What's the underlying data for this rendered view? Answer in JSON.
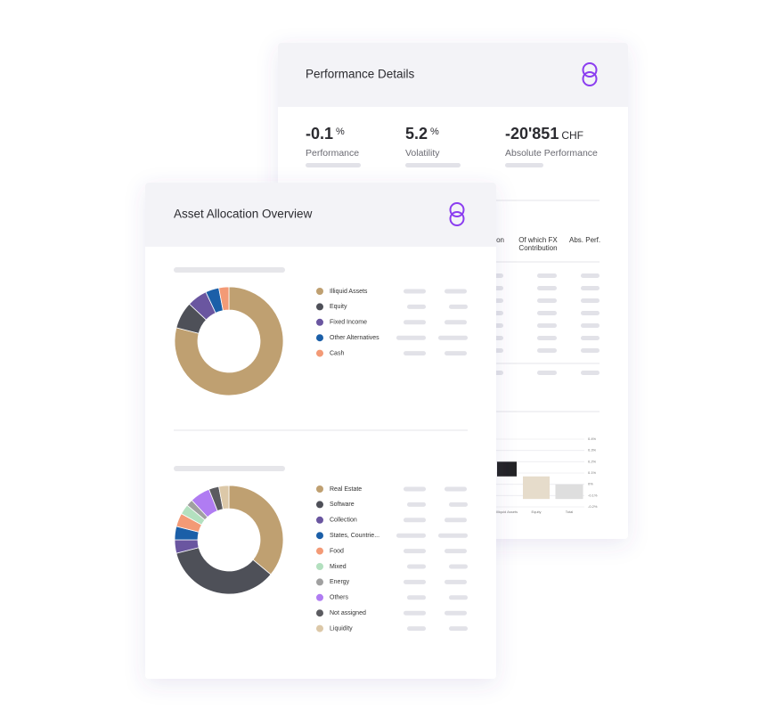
{
  "performance_details": {
    "title": "Performance Details",
    "metrics": [
      {
        "value": "-0.1",
        "unit": "%",
        "label": "Performance"
      },
      {
        "value": "5.2",
        "unit": "%",
        "label": "Volatility"
      },
      {
        "value": "-20'851",
        "unit": "CHF",
        "label": "Absolute Performance"
      }
    ],
    "table_headers": [
      [
        "on"
      ],
      [
        "Of which FX",
        "Contribution"
      ],
      [
        "Abs. Perf."
      ]
    ]
  },
  "asset_allocation": {
    "title": "Asset Allocation Overview"
  },
  "chart_data": [
    {
      "type": "range-bar",
      "categories": [
        "Illiquid Assets",
        "Equity",
        "Total"
      ],
      "starts": [
        0.2,
        0.07,
        0
      ],
      "ends": [
        0.07,
        -0.13,
        -0.13
      ],
      "colors": [
        "#232325",
        "#e6dccb",
        "#dedede"
      ],
      "ylim": [
        -0.2,
        0.4
      ],
      "yticks": [
        {
          "value": 0.4,
          "label": "0.4%"
        },
        {
          "value": 0.3,
          "label": "0.3%"
        },
        {
          "value": 0.2,
          "label": "0.2%"
        },
        {
          "value": 0.1,
          "label": "0.1%"
        },
        {
          "value": 0,
          "label": "0%"
        },
        {
          "value": -0.1,
          "label": "-0.1%"
        },
        {
          "value": -0.2,
          "label": "-0.2%"
        }
      ]
    },
    {
      "type": "donut",
      "categories": [
        "Illiquid Assets",
        "Equity",
        "Fixed Income",
        "Other Alternatives",
        "Cash"
      ],
      "values": [
        79,
        8,
        6,
        4,
        3
      ],
      "colors": [
        "#bfa071",
        "#4e5058",
        "#6a56a0",
        "#1b5fa8",
        "#f39a76"
      ]
    },
    {
      "type": "donut",
      "categories": [
        "Real Estate",
        "Software",
        "Collection",
        "States, Countrie...",
        "Food",
        "Mixed",
        "Energy",
        "Others",
        "Not assigned",
        "Liquidity"
      ],
      "values": [
        36,
        35,
        4,
        4,
        4,
        3,
        2,
        6,
        3,
        3
      ],
      "colors": [
        "#bfa071",
        "#4e5058",
        "#6a56a0",
        "#1b5fa8",
        "#f39a76",
        "#b3e0bf",
        "#a0a0a0",
        "#b07cf2",
        "#5b5b60",
        "#dcc8a8"
      ]
    }
  ]
}
